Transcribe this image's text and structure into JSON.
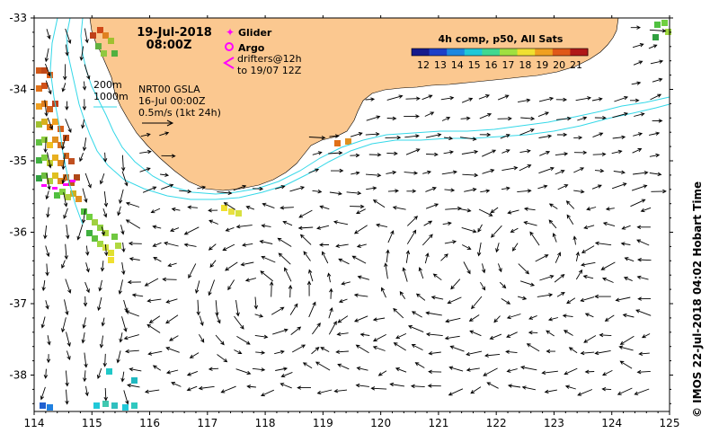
{
  "map": {
    "date": "19-Jul-2018",
    "time": "08:00Z",
    "legend": {
      "glider": "Glider",
      "argo": "Argo",
      "drifters_line1": "drifters@12h",
      "drifters_line2": "to 19/07 12Z"
    },
    "isobath_200": "200m",
    "isobath_1000": "1000m",
    "product": "NRT00 GSLA",
    "product_date": "16-Jul 00:00Z",
    "scale_label": "0.5m/s (1kt 24h)",
    "sst_title": "4h comp, p50, All Sats",
    "sst_ticks": [
      "12",
      "13",
      "14",
      "15",
      "16",
      "17",
      "18",
      "19",
      "20",
      "21"
    ],
    "credit": "©  IMOS 22-Jul-2018 04:02 Hobart Time",
    "x_ticks": [
      "114",
      "115",
      "116",
      "117",
      "118",
      "119",
      "120",
      "121",
      "122",
      "123",
      "124",
      "125"
    ],
    "y_ticks": [
      "-33",
      "-34",
      "-35",
      "-36",
      "-37",
      "-38"
    ],
    "colors": {
      "land": "#fbc890",
      "isobath": "#35d8e8",
      "glider": "#ff00ff",
      "argo": "#ff00ff"
    },
    "sst_palette": [
      "#151a8c",
      "#1e40c8",
      "#1e88e0",
      "#20c8d8",
      "#40d890",
      "#a0e040",
      "#f0e030",
      "#f0a020",
      "#e05818",
      "#b01818"
    ]
  }
}
